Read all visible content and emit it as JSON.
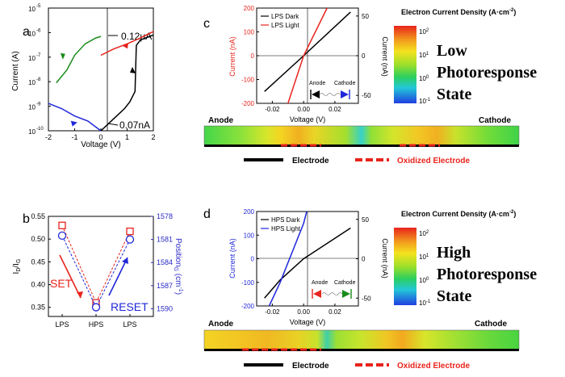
{
  "panel_labels": [
    "a",
    "b",
    "c",
    "d"
  ],
  "colors": {
    "black": "#000000",
    "red": "#e8241c",
    "green": "#1a8c1a",
    "blue": "#1f27d8",
    "axis_blue": "#2929c8",
    "oxidized": "#e8241c"
  },
  "panel_a": {
    "ylabel": "Current (A)",
    "xlabel": "Voltage (V)",
    "yticks": [
      "10",
      "10",
      "10",
      "10",
      "10",
      "10"
    ],
    "ytick_exp": [
      "-5",
      "-6",
      "-7",
      "-8",
      "-9",
      "-10"
    ],
    "xticks": [
      "-2",
      "-1",
      "0",
      "1",
      "2"
    ],
    "annotation_high": "0.12μA",
    "annotation_low": "0.07nA"
  },
  "panel_b": {
    "ylabel_left": "ID/IG",
    "ylabel_right": "PositionG (cm-1)",
    "yticks_left": [
      "0.55",
      "0.50",
      "0.45",
      "0.40",
      "0.35"
    ],
    "yticks_right": [
      "1578",
      "1581",
      "1584",
      "1587",
      "1590"
    ],
    "xticks": [
      "LPS",
      "HPS",
      "LPS"
    ],
    "set_label": "SET",
    "reset_label": "RESET"
  },
  "panel_c": {
    "ylabel_left": "Current (nA)",
    "ylabel_right": "Current (nA)",
    "xlabel": "Voltage (V)",
    "yticks_left": [
      "200",
      "100",
      "0",
      "-100",
      "-200"
    ],
    "yticks_right": [
      "50",
      "0",
      "-50"
    ],
    "xticks": [
      "-0.02",
      "0.00",
      "0.02"
    ],
    "legend": [
      "LPS Dark",
      "LPS Light"
    ],
    "inset_anode": "Anode",
    "inset_cathode": "Cathode",
    "colorbar_title": "Electron Current Density (A·cm",
    "colorbar_title_exp": "-2",
    "colorbar_title_end": ")",
    "colorbar_ticks": [
      "10",
      "10",
      "10",
      "10"
    ],
    "colorbar_exps": [
      "2",
      "1",
      "0",
      "-1"
    ],
    "state_text": [
      "Low",
      "Photoresponse",
      "State"
    ],
    "strip_anode": "Anode",
    "strip_cathode": "Cathode",
    "legend_electrode": "Electrode",
    "legend_oxidized": "Oxidized Electrode"
  },
  "panel_d": {
    "ylabel_left": "Current (nA)",
    "ylabel_right": "Current (nA)",
    "xlabel": "Voltage (V)",
    "yticks_left": [
      "200",
      "100",
      "0",
      "-100",
      "-200"
    ],
    "yticks_right": [
      "50",
      "0",
      "-50"
    ],
    "xticks": [
      "-0.02",
      "0.00",
      "0.02"
    ],
    "legend": [
      "HPS Dark",
      "HPS Light"
    ],
    "inset_anode": "Anode",
    "inset_cathode": "Cathode",
    "colorbar_title": "Electron Current Density (A·cm",
    "colorbar_title_exp": "-2",
    "colorbar_title_end": ")",
    "colorbar_ticks": [
      "10",
      "10",
      "10",
      "10"
    ],
    "colorbar_exps": [
      "2",
      "1",
      "0",
      "-1"
    ],
    "state_text": [
      "High",
      "Photoresponse",
      "State"
    ],
    "strip_anode": "Anode",
    "strip_cathode": "Cathode",
    "legend_electrode": "Electrode",
    "legend_oxidized": "Oxidized Electrode"
  },
  "chart_data": [
    {
      "panel": "a",
      "type": "line",
      "xlabel": "Voltage (V)",
      "ylabel": "Current (A)",
      "xlim": [
        -2,
        2
      ],
      "ylog": true,
      "ylim": [
        1e-10,
        1e-05
      ],
      "series": [
        {
          "color": "#e8241c",
          "x": [
            0,
            0.5,
            1.0,
            1.5,
            2.0
          ],
          "y": [
            1.2e-07,
            2.2e-07,
            3.5e-07,
            6e-07,
            1.1e-06
          ]
        },
        {
          "color": "#1a8c1a",
          "x": [
            -1.7,
            -1.3,
            -1.0,
            -0.6,
            -0.2,
            0.0
          ],
          "y": [
            9e-09,
            3e-08,
            1.2e-07,
            3.5e-07,
            6e-07,
            7e-07
          ]
        },
        {
          "color": "#1f27d8",
          "x": [
            -2.0,
            -1.5,
            -1.0,
            -0.5,
            -0.1,
            0.0
          ],
          "y": [
            1.3e-09,
            8e-10,
            4e-10,
            2.5e-10,
            1.2e-10,
            1e-10
          ]
        },
        {
          "color": "#000000",
          "x": [
            0.0,
            0.3,
            0.6,
            0.9,
            1.1,
            1.3,
            1.35,
            1.5,
            2.0
          ],
          "y": [
            1e-10,
            2e-10,
            4e-10,
            8e-10,
            1.5e-09,
            4e-09,
            3e-07,
            5e-07,
            8e-07
          ]
        }
      ]
    },
    {
      "panel": "b",
      "type": "line",
      "categories": [
        "LPS",
        "HPS",
        "LPS"
      ],
      "ylim_left": [
        0.33,
        0.55
      ],
      "ylim_right": [
        1578,
        1591
      ],
      "series": [
        {
          "marker": "square",
          "color": "#e8241c",
          "axis": "left",
          "values": [
            0.53,
            0.36,
            0.517
          ]
        },
        {
          "marker": "circle",
          "color": "#1f27d8",
          "axis": "right",
          "values": [
            1580.5,
            1589.8,
            1581.0
          ]
        }
      ]
    },
    {
      "panel": "c",
      "type": "line",
      "xlabel": "Voltage (V)",
      "xlim": [
        -0.03,
        0.035
      ],
      "ylim_left": [
        -200,
        200
      ],
      "ylim_right": [
        -60,
        60
      ],
      "series": [
        {
          "name": "LPS Dark",
          "color": "#000000",
          "axis": "right",
          "x": [
            -0.025,
            0.0,
            0.03
          ],
          "y": [
            -45,
            0,
            55
          ]
        },
        {
          "name": "LPS Light",
          "color": "#e8241c",
          "axis": "left",
          "x": [
            -0.01,
            0.0,
            0.015
          ],
          "y": [
            -200,
            0,
            200
          ]
        }
      ]
    },
    {
      "panel": "d",
      "type": "line",
      "xlabel": "Voltage (V)",
      "xlim": [
        -0.03,
        0.035
      ],
      "ylim_left": [
        -200,
        200
      ],
      "ylim_right": [
        -60,
        60
      ],
      "series": [
        {
          "name": "HPS Dark",
          "color": "#000000",
          "axis": "right",
          "x": [
            -0.025,
            -0.015,
            0.0,
            0.03
          ],
          "y": [
            -50,
            -27,
            0,
            39
          ]
        },
        {
          "name": "HPS Light",
          "color": "#1f27d8",
          "axis": "left",
          "x": [
            -0.022,
            -0.015,
            0.0,
            0.002
          ],
          "y": [
            -200,
            -100,
            150,
            200
          ]
        }
      ]
    }
  ]
}
